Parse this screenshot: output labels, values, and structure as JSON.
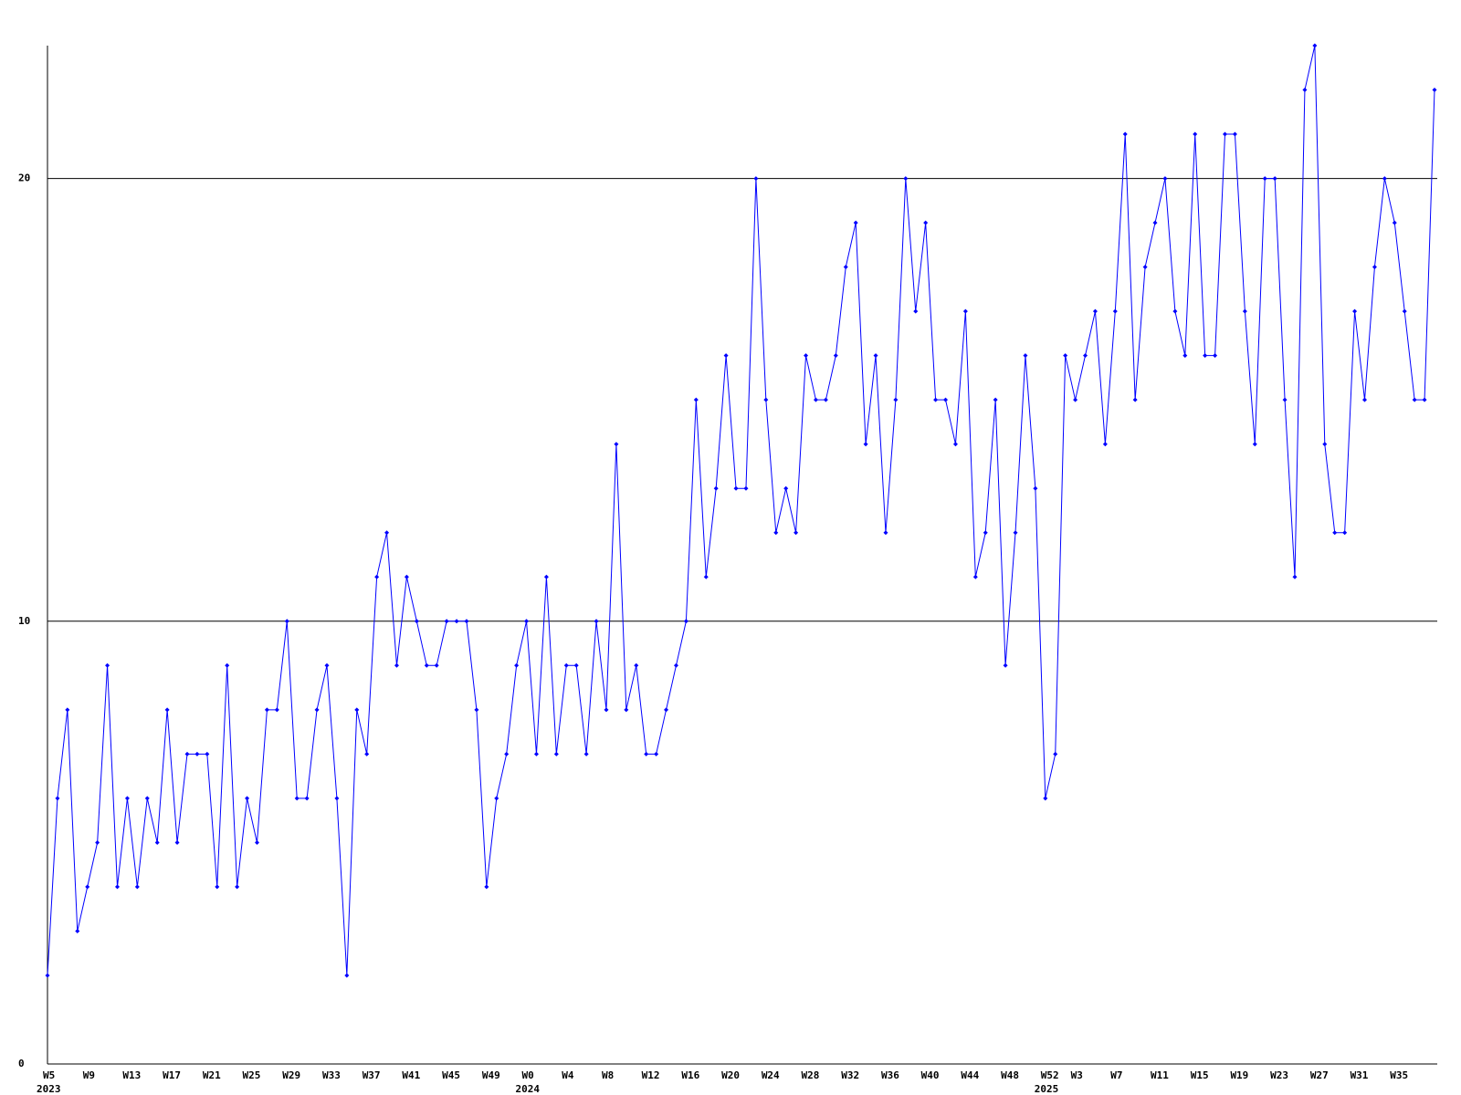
{
  "chart_data": {
    "type": "line",
    "series": [
      {
        "color": "#0000ff",
        "values": [
          2,
          6,
          8,
          3,
          4,
          5,
          9,
          4,
          6,
          4,
          6,
          5,
          8,
          5,
          7,
          7,
          7,
          4,
          9,
          4,
          6,
          5,
          8,
          8,
          10,
          6,
          6,
          8,
          9,
          6,
          2,
          8,
          7,
          11,
          12,
          9,
          11,
          10,
          9,
          9,
          10,
          10,
          10,
          8,
          4,
          6,
          7,
          9,
          10,
          7,
          11,
          7,
          9,
          9,
          7,
          10,
          8,
          14,
          8,
          9,
          7,
          7,
          8,
          9,
          10,
          15,
          11,
          13,
          16,
          13,
          13,
          20,
          15,
          12,
          13,
          12,
          16,
          15,
          15,
          16,
          18,
          19,
          14,
          16,
          12,
          15,
          20,
          17,
          19,
          15,
          15,
          14,
          17,
          11,
          12,
          15,
          9,
          12,
          16,
          13,
          6,
          7,
          16,
          15,
          16,
          17,
          14,
          17,
          21,
          15,
          18,
          19,
          20,
          17,
          16,
          21,
          16,
          16,
          21,
          21,
          17,
          14,
          20,
          20,
          15,
          11,
          22,
          23,
          14,
          12,
          12,
          17,
          15,
          18,
          20,
          19,
          17,
          15,
          15,
          22
        ]
      }
    ],
    "xlim": [
      0,
      139
    ],
    "xticks": [
      {
        "value": 0,
        "label": "W5"
      },
      {
        "value": 4,
        "label": "W9"
      },
      {
        "value": 8,
        "label": "W13"
      },
      {
        "value": 12,
        "label": "W17"
      },
      {
        "value": 16,
        "label": "W21"
      },
      {
        "value": 20,
        "label": "W25"
      },
      {
        "value": 24,
        "label": "W29"
      },
      {
        "value": 28,
        "label": "W33"
      },
      {
        "value": 32,
        "label": "W37"
      },
      {
        "value": 36,
        "label": "W41"
      },
      {
        "value": 40,
        "label": "W45"
      },
      {
        "value": 44,
        "label": "W49"
      },
      {
        "value": 48,
        "label": "W0"
      },
      {
        "value": 52,
        "label": "W4"
      },
      {
        "value": 56,
        "label": "W8"
      },
      {
        "value": 60,
        "label": "W12"
      },
      {
        "value": 64,
        "label": "W16"
      },
      {
        "value": 68,
        "label": "W20"
      },
      {
        "value": 72,
        "label": "W24"
      },
      {
        "value": 76,
        "label": "W28"
      },
      {
        "value": 80,
        "label": "W32"
      },
      {
        "value": 84,
        "label": "W36"
      },
      {
        "value": 88,
        "label": "W40"
      },
      {
        "value": 92,
        "label": "W44"
      },
      {
        "value": 96,
        "label": "W48"
      },
      {
        "value": 100,
        "label": "W52"
      },
      {
        "value": 103,
        "label": "W3"
      },
      {
        "value": 107,
        "label": "W7"
      },
      {
        "value": 111,
        "label": "W11"
      },
      {
        "value": 115,
        "label": "W15"
      },
      {
        "value": 119,
        "label": "W19"
      },
      {
        "value": 123,
        "label": "W23"
      },
      {
        "value": 127,
        "label": "W27"
      },
      {
        "value": 131,
        "label": "W31"
      },
      {
        "value": 135,
        "label": "W35"
      }
    ],
    "year_ticks": [
      {
        "value": 0,
        "label": "2023"
      },
      {
        "value": 48,
        "label": "2024"
      },
      {
        "value": 100,
        "label": "2025"
      }
    ],
    "ylim": [
      0,
      23
    ],
    "yticks": [
      0,
      10,
      20
    ],
    "grid": true
  }
}
